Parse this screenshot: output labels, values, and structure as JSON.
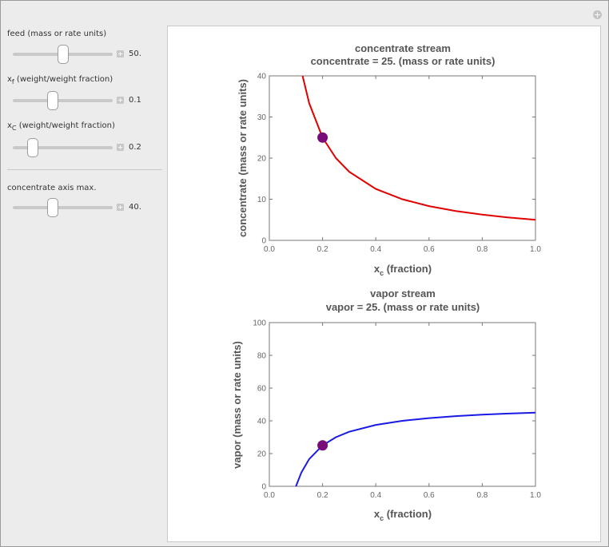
{
  "controls": [
    {
      "label_main": "feed (mass or rate units)",
      "label_sub": "",
      "label_rest": "",
      "value": "50.",
      "fraction": 0.5
    },
    {
      "label_main": "x",
      "label_sub": "f",
      "label_rest": " (weight/weight fraction)",
      "value": "0.1",
      "fraction": 0.4
    },
    {
      "label_main": "x",
      "label_sub": "C",
      "label_rest": " (weight/weight fraction)",
      "value": "0.2",
      "fraction": 0.2
    },
    {
      "label_main": "concentrate axis max.",
      "label_sub": "",
      "label_rest": "",
      "value": "40.",
      "fraction": 0.4
    }
  ],
  "chart_data": [
    {
      "type": "line",
      "title": "concentrate stream",
      "subtitle": "concentrate = 25. (mass or rate units)",
      "xlabel_main": "x",
      "xlabel_sub": "c",
      "xlabel_rest": " (fraction)",
      "ylabel": "concentrate (mass or rate units)",
      "xlim": [
        0,
        1
      ],
      "ylim": [
        0,
        40
      ],
      "xticks": [
        "0.0",
        "0.2",
        "0.4",
        "0.6",
        "0.8",
        "1.0"
      ],
      "xtick_values": [
        0,
        0.2,
        0.4,
        0.6,
        0.8,
        1.0
      ],
      "yticks": [
        "0",
        "10",
        "20",
        "30",
        "40"
      ],
      "ytick_values": [
        0,
        10,
        20,
        30,
        40
      ],
      "series": [
        {
          "color": "#e00000",
          "x": [
            0.125,
            0.15,
            0.2,
            0.25,
            0.3,
            0.4,
            0.5,
            0.6,
            0.7,
            0.8,
            0.9,
            1.0
          ],
          "y": [
            40,
            33.33,
            25,
            20,
            16.67,
            12.5,
            10,
            8.33,
            7.14,
            6.25,
            5.56,
            5
          ]
        }
      ],
      "point": {
        "x": 0.2,
        "y": 25,
        "color": "#7a0c7a"
      }
    },
    {
      "type": "line",
      "title": "vapor stream",
      "subtitle": "vapor = 25. (mass or rate units)",
      "xlabel_main": "x",
      "xlabel_sub": "c",
      "xlabel_rest": " (fraction)",
      "ylabel": "vapor (mass or rate units)",
      "xlim": [
        0,
        1
      ],
      "ylim": [
        0,
        100
      ],
      "xticks": [
        "0.0",
        "0.2",
        "0.4",
        "0.6",
        "0.8",
        "1.0"
      ],
      "xtick_values": [
        0,
        0.2,
        0.4,
        0.6,
        0.8,
        1.0
      ],
      "yticks": [
        "0",
        "20",
        "40",
        "60",
        "80",
        "100"
      ],
      "ytick_values": [
        0,
        20,
        40,
        60,
        80,
        100
      ],
      "series": [
        {
          "color": "#1a1ae6",
          "x": [
            0.1,
            0.12,
            0.15,
            0.2,
            0.25,
            0.3,
            0.4,
            0.5,
            0.6,
            0.7,
            0.8,
            0.9,
            1.0
          ],
          "y": [
            0,
            8.33,
            16.67,
            25,
            30,
            33.33,
            37.5,
            40,
            41.67,
            42.86,
            43.75,
            44.44,
            45
          ]
        }
      ],
      "point": {
        "x": 0.2,
        "y": 25,
        "color": "#7a0c7a"
      }
    }
  ]
}
